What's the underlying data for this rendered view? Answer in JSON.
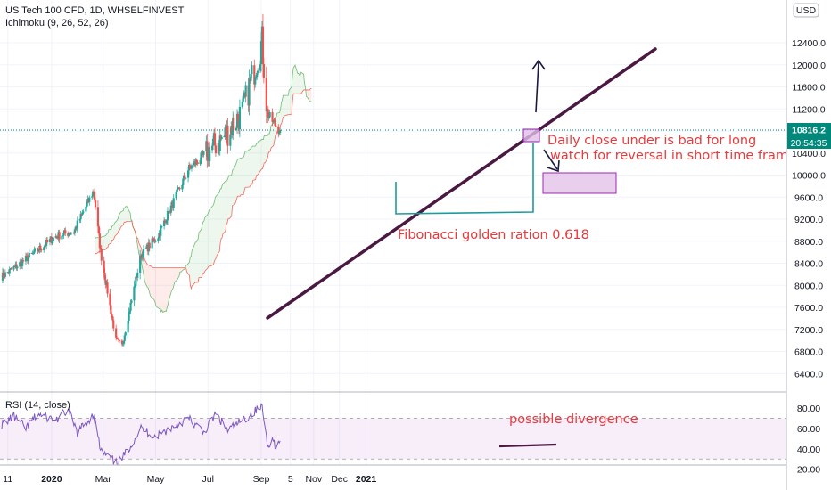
{
  "header": {
    "instrument": "US Tech 100 CFD, 1D, WHSELFINVEST",
    "indicator": "Ichimoku (9, 26, 52, 26)",
    "currency": "USD"
  },
  "price_panel": {
    "last_price": "10816.2",
    "countdown": "20:54:35"
  },
  "rsi_panel": {
    "label": "RSI (14, close)"
  },
  "annotations": {
    "daily_close": "Daily close under is bad for long",
    "watch_reversal": "watch for reversal in short time frame",
    "fibonacci": "Fibonacci golden ration 0.618",
    "divergence": "possible divergence"
  },
  "colors": {
    "bull": "#26a69a",
    "bear": "#ef5350",
    "cloud_green": "#4caf50",
    "cloud_red": "#f44336",
    "rsi_line": "#7e57c2",
    "trendline": "#4a1942",
    "annotation": "#e8393b",
    "price_label": "#00897b"
  },
  "chart_data": [
    {
      "type": "candlestick",
      "title": "US Tech 100 CFD, 1D, WHSELFINVEST",
      "x_tick_labels": [
        "11",
        "2020",
        "Mar",
        "May",
        "Jul",
        "Sep",
        "5",
        "Nov",
        "Dec",
        "2021"
      ],
      "y_tick_labels": [
        "6400.0",
        "6800.0",
        "7200.0",
        "7600.0",
        "8000.0",
        "8400.0",
        "8800.0",
        "9200.0",
        "9600.0",
        "10000.0",
        "10400.0",
        "10800.0",
        "11200.0",
        "11600.0",
        "12000.0",
        "12400.0"
      ],
      "ylim": [
        6000,
        12900
      ],
      "close_anchors": [
        {
          "date": "2019-11-04",
          "close": 8160
        },
        {
          "date": "2019-11-25",
          "close": 8390
        },
        {
          "date": "2019-12-16",
          "close": 8640
        },
        {
          "date": "2020-01-06",
          "close": 8890
        },
        {
          "date": "2020-01-27",
          "close": 8980
        },
        {
          "date": "2020-02-19",
          "close": 9720
        },
        {
          "date": "2020-02-27",
          "close": 8600
        },
        {
          "date": "2020-03-16",
          "close": 7000
        },
        {
          "date": "2020-03-23",
          "close": 6900
        },
        {
          "date": "2020-04-14",
          "close": 8550
        },
        {
          "date": "2020-05-04",
          "close": 8900
        },
        {
          "date": "2020-06-08",
          "close": 10100
        },
        {
          "date": "2020-07-20",
          "close": 10700
        },
        {
          "date": "2020-08-10",
          "close": 11150
        },
        {
          "date": "2020-09-02",
          "close": 12420
        },
        {
          "date": "2020-09-08",
          "close": 11100
        },
        {
          "date": "2020-09-18",
          "close": 10900
        },
        {
          "date": "2020-09-23",
          "close": 10800
        }
      ],
      "last_price": 10816.2,
      "ichimoku": {
        "tenkan": 9,
        "kijun": 26,
        "senkou_b": 52,
        "displacement": 26
      }
    },
    {
      "type": "line",
      "title": "RSI (14, close)",
      "y_tick_labels": [
        "20.00",
        "40.00",
        "60.00",
        "80.00"
      ],
      "ylim": [
        18,
        86
      ],
      "reference_levels": [
        30,
        70
      ],
      "points": [
        {
          "date": "2019-11-04",
          "value": 64
        },
        {
          "date": "2019-11-18",
          "value": 72
        },
        {
          "date": "2019-12-02",
          "value": 60
        },
        {
          "date": "2019-12-16",
          "value": 74
        },
        {
          "date": "2020-01-06",
          "value": 68
        },
        {
          "date": "2020-01-20",
          "value": 78
        },
        {
          "date": "2020-01-31",
          "value": 56
        },
        {
          "date": "2020-02-19",
          "value": 74
        },
        {
          "date": "2020-02-27",
          "value": 38
        },
        {
          "date": "2020-03-16",
          "value": 26
        },
        {
          "date": "2020-03-23",
          "value": 30
        },
        {
          "date": "2020-04-14",
          "value": 60
        },
        {
          "date": "2020-05-01",
          "value": 52
        },
        {
          "date": "2020-06-08",
          "value": 70
        },
        {
          "date": "2020-06-26",
          "value": 56
        },
        {
          "date": "2020-07-10",
          "value": 74
        },
        {
          "date": "2020-07-24",
          "value": 58
        },
        {
          "date": "2020-08-14",
          "value": 70
        },
        {
          "date": "2020-09-02",
          "value": 82
        },
        {
          "date": "2020-09-08",
          "value": 45
        },
        {
          "date": "2020-09-15",
          "value": 48
        },
        {
          "date": "2020-09-18",
          "value": 43
        },
        {
          "date": "2020-09-23",
          "value": 46
        }
      ]
    }
  ]
}
